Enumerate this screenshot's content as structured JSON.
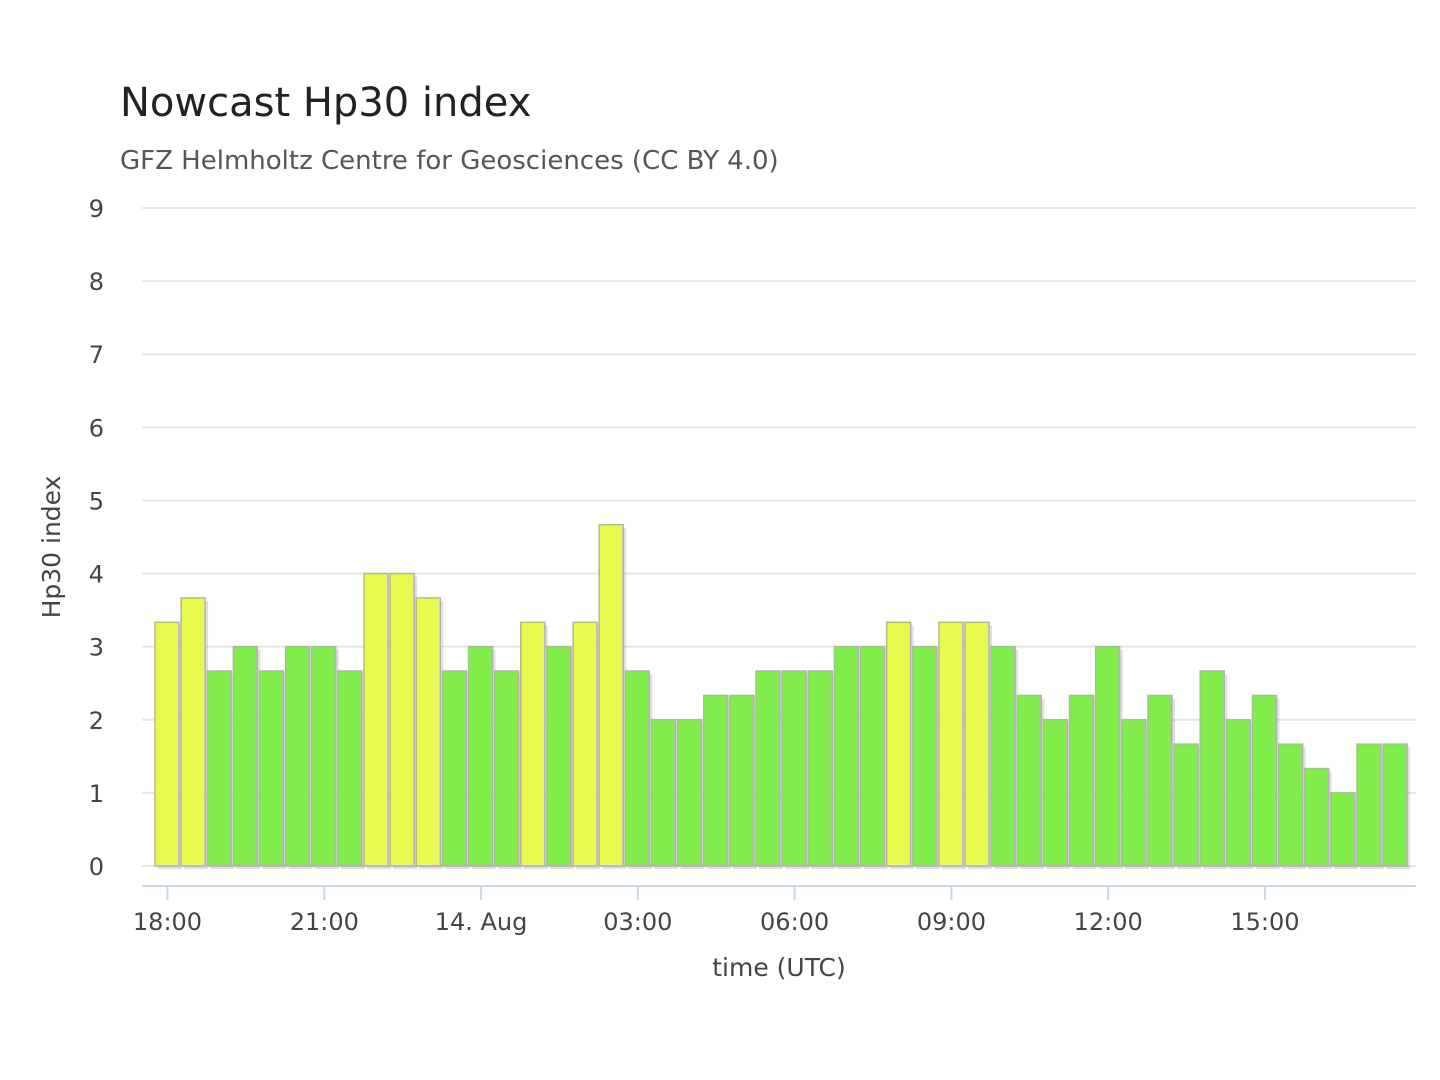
{
  "chart_data": {
    "type": "bar",
    "title": "Nowcast Hp30 index",
    "subtitle": "GFZ Helmholtz Centre for Geosciences (CC BY 4.0)",
    "xlabel": "time (UTC)",
    "ylabel": "Hp30 index",
    "ylim": [
      0,
      9
    ],
    "yticks": [
      "0",
      "1",
      "2",
      "3",
      "4",
      "5",
      "6",
      "7",
      "8",
      "9"
    ],
    "xticks": [
      "18:00",
      "21:00",
      "14. Aug",
      "03:00",
      "06:00",
      "09:00",
      "12:00",
      "15:00"
    ],
    "grid": true,
    "interval": "30 min",
    "start_time": "13 Aug 17:30",
    "values": [
      3.333,
      3.667,
      2.667,
      3.0,
      2.667,
      3.0,
      3.0,
      2.667,
      4.0,
      4.0,
      3.667,
      2.667,
      3.0,
      2.667,
      3.333,
      3.0,
      3.333,
      4.667,
      2.667,
      2.0,
      2.0,
      2.333,
      2.333,
      2.667,
      2.667,
      2.667,
      3.0,
      3.0,
      3.333,
      3.0,
      3.333,
      3.333,
      3.0,
      2.333,
      2.0,
      2.333,
      3.0,
      2.0,
      2.333,
      1.667,
      2.667,
      2.0,
      2.333,
      1.667,
      1.333,
      1.0,
      1.667,
      1.667
    ],
    "colors": {
      "quiet": "#80ed4a",
      "elevated": "#e9fa4e",
      "threshold": 3.333
    }
  }
}
